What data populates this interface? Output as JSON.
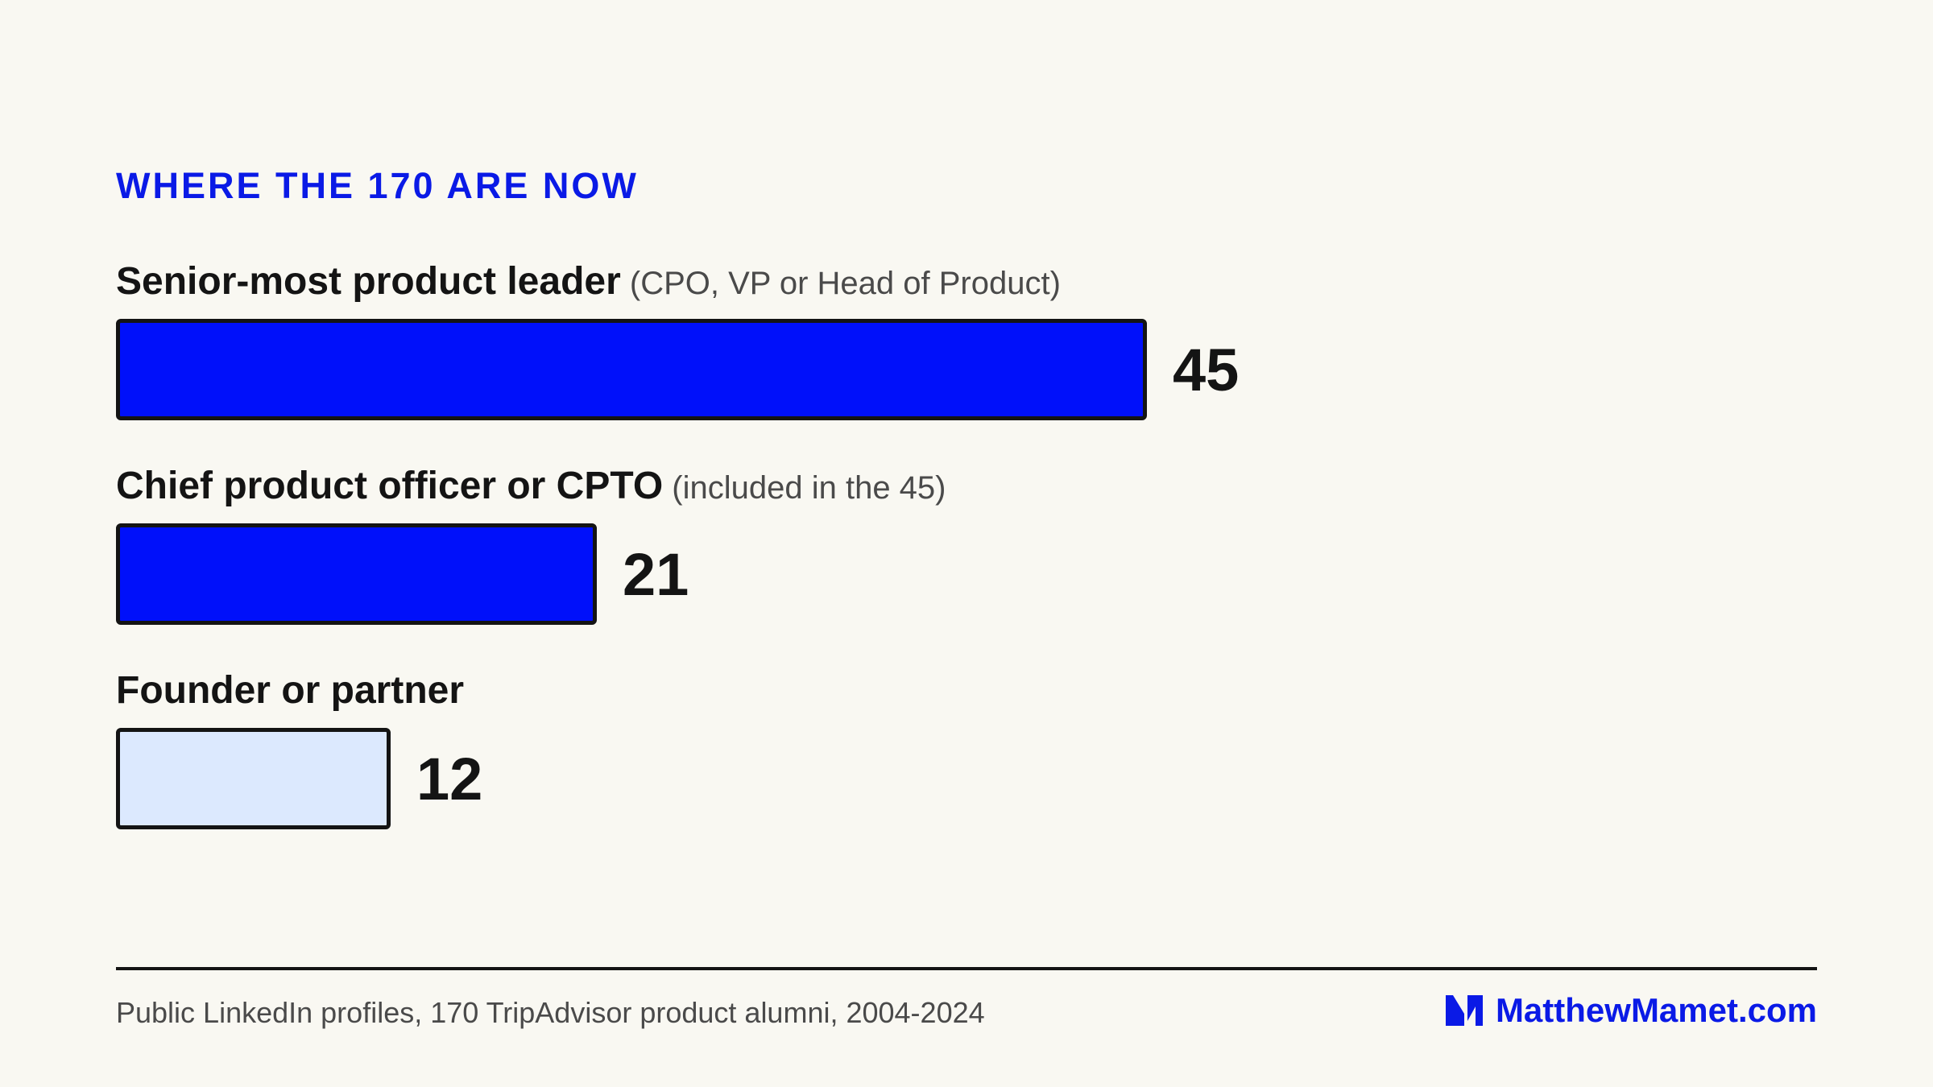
{
  "kicker": "WHERE THE 170 ARE NOW",
  "colors": {
    "primary": "#0010fa",
    "light": "#dce9fe",
    "border": "#141414",
    "background": "#f9f8f2",
    "accent_text": "#0a1ae6"
  },
  "chart_data": {
    "type": "bar",
    "orientation": "horizontal",
    "categories": [
      "Senior-most product leader",
      "Chief product officer or CPTO",
      "Founder or partner"
    ],
    "category_notes": [
      "(CPO, VP or Head of Product)",
      "(included in the 45)",
      ""
    ],
    "values": [
      45,
      21,
      12
    ],
    "bar_colors": [
      "#0010fa",
      "#0010fa",
      "#dce9fe"
    ],
    "title": "WHERE THE 170 ARE NOW",
    "grid": false,
    "legend": "none",
    "xlim": [
      0,
      45
    ]
  },
  "footer": {
    "source": "Public LinkedIn profiles, 170 TripAdvisor product alumni, 2004-2024",
    "brand_text": "MatthewMamet.com",
    "brand_icon": "mm-logo-icon"
  }
}
